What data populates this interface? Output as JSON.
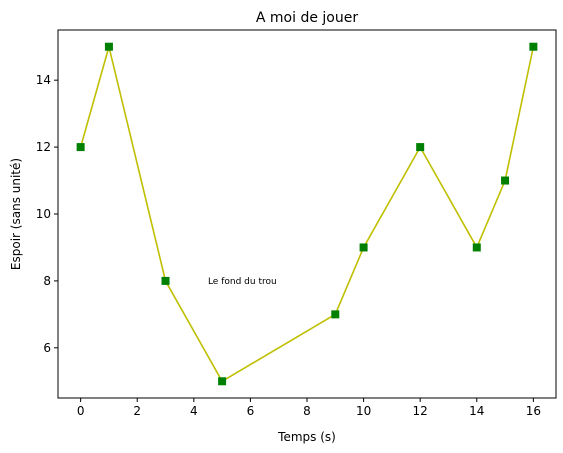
{
  "chart_data": {
    "type": "line",
    "title": "A moi de jouer",
    "xlabel": "Temps (s)",
    "ylabel": "Espoir (sans unité)",
    "xlim": [
      -0.8,
      16.8
    ],
    "ylim": [
      4.5,
      15.5
    ],
    "xticks": [
      0,
      2,
      4,
      6,
      8,
      10,
      12,
      14,
      16
    ],
    "yticks": [
      6,
      8,
      10,
      12,
      14
    ],
    "grid": false,
    "line_color": "#bfbf00",
    "marker_color": "#008000",
    "marker": "square",
    "series": [
      {
        "x": [
          0,
          1,
          3,
          5,
          9,
          10,
          12,
          14,
          15,
          16
        ],
        "y": [
          12,
          15,
          8,
          5,
          7,
          9,
          12,
          9,
          11,
          15
        ]
      }
    ],
    "annotations": [
      {
        "text": "Le fond du trou",
        "x": 4.5,
        "y": 8
      }
    ]
  }
}
